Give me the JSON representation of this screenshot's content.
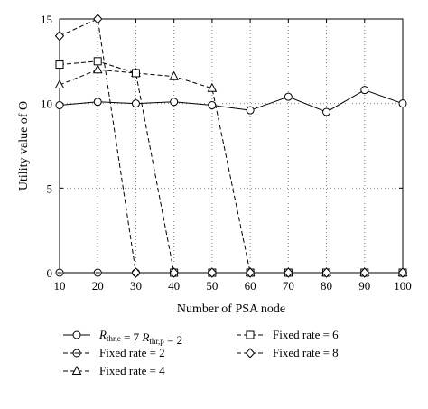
{
  "chart_data": {
    "type": "line",
    "xlabel": "Number of PSA node",
    "ylabel": "Utility value of Θ",
    "x": [
      10,
      20,
      30,
      40,
      50,
      60,
      70,
      80,
      90,
      100
    ],
    "xlim": [
      10,
      100
    ],
    "ylim": [
      0,
      15
    ],
    "xticks": [
      "10",
      "20",
      "30",
      "40",
      "50",
      "60",
      "70",
      "80",
      "90",
      "100"
    ],
    "yticks": [
      "0",
      "5",
      "10",
      "15"
    ],
    "grid": "dotted",
    "legend_position": "below",
    "series": [
      {
        "name": "R_thr,e = 7 R_thr,p = 2",
        "name_parts": {
          "r1": "R",
          "s1": "thr,e",
          "mid": " = 7 ",
          "r2": "R",
          "s2": "thr,p",
          "end": " = 2"
        },
        "marker": "circle",
        "line": "solid",
        "values": [
          9.9,
          10.1,
          10.0,
          10.1,
          9.9,
          9.6,
          10.4,
          9.5,
          10.8,
          10.0
        ]
      },
      {
        "name": "Fixed rate = 2",
        "marker": "circle-dash",
        "line": "dashed",
        "values": [
          0,
          0,
          0,
          0,
          0,
          0,
          0,
          0,
          0,
          0
        ]
      },
      {
        "name": "Fixed rate = 4",
        "marker": "triangle",
        "line": "dashed",
        "values": [
          11.1,
          12.0,
          11.8,
          11.6,
          10.9,
          0,
          0,
          0,
          0,
          0
        ]
      },
      {
        "name": "Fixed rate = 6",
        "marker": "square",
        "line": "dashed",
        "values": [
          12.3,
          12.5,
          11.8,
          0,
          0,
          0,
          0,
          0,
          0,
          0
        ]
      },
      {
        "name": "Fixed rate = 8",
        "marker": "diamond",
        "line": "dashed",
        "values": [
          14.0,
          15.0,
          0,
          0,
          0,
          0,
          0,
          0,
          0,
          0
        ]
      }
    ]
  }
}
